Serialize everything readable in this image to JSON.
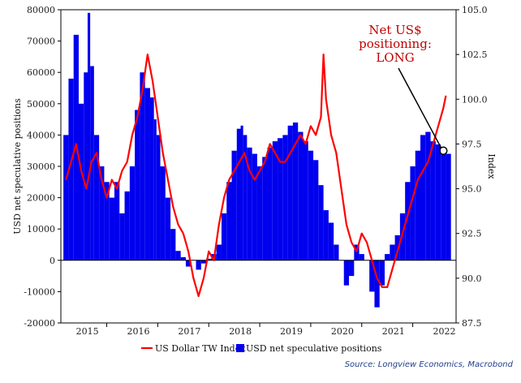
{
  "chart_data": {
    "type": "bar+line",
    "left_axis": {
      "label": "USD net speculative positions",
      "ylim": [
        -20000,
        80000
      ],
      "ticks": [
        "-20000",
        "-10000",
        "0",
        "10000",
        "20000",
        "30000",
        "40000",
        "50000",
        "60000",
        "70000",
        "80000"
      ],
      "tick_values": [
        -20000,
        -10000,
        0,
        10000,
        20000,
        30000,
        40000,
        50000,
        60000,
        70000,
        80000
      ]
    },
    "right_axis": {
      "label": "Index",
      "ylim": [
        87.5,
        105.0
      ],
      "ticks": [
        "87.5",
        "90.0",
        "92.5",
        "95.0",
        "97.5",
        "100.0",
        "102.5",
        "105.0"
      ],
      "tick_values": [
        87.5,
        90.0,
        92.5,
        95.0,
        97.5,
        100.0,
        102.5,
        105.0
      ]
    },
    "x_axis": {
      "labels": [
        "2015",
        "2016",
        "2017",
        "2018",
        "2019",
        "2020",
        "2021",
        "2022"
      ],
      "label_positions": [
        2015.0,
        2016.0,
        2017.0,
        2018.0,
        2019.0,
        2020.0,
        2021.0,
        2022.0
      ],
      "xlim": [
        2014.6,
        2022.35
      ]
    },
    "series": [
      {
        "name": "USD net speculative positions",
        "kind": "bar",
        "axis": "left",
        "color": "#0000ee",
        "x": [
          2014.7,
          2014.8,
          2014.9,
          2015.0,
          2015.1,
          2015.15,
          2015.2,
          2015.3,
          2015.4,
          2015.5,
          2015.6,
          2015.7,
          2015.8,
          2015.9,
          2016.0,
          2016.1,
          2016.2,
          2016.3,
          2016.4,
          2016.45,
          2016.5,
          2016.6,
          2016.7,
          2016.8,
          2016.9,
          2017.0,
          2017.1,
          2017.2,
          2017.3,
          2017.4,
          2017.5,
          2017.6,
          2017.7,
          2017.8,
          2017.9,
          2018.0,
          2018.1,
          2018.15,
          2018.2,
          2018.3,
          2018.4,
          2018.5,
          2018.6,
          2018.7,
          2018.8,
          2018.9,
          2019.0,
          2019.1,
          2019.2,
          2019.3,
          2019.4,
          2019.5,
          2019.6,
          2019.7,
          2019.8,
          2019.9,
          2020.0,
          2020.1,
          2020.2,
          2020.3,
          2020.4,
          2020.5,
          2020.6,
          2020.7,
          2020.8,
          2020.9,
          2021.0,
          2021.1,
          2021.2,
          2021.3,
          2021.4,
          2021.5,
          2021.6,
          2021.7,
          2021.8,
          2021.9,
          2022.0,
          2022.1,
          2022.2
        ],
        "values": [
          40000,
          58000,
          72000,
          50000,
          60000,
          79000,
          62000,
          40000,
          30000,
          25000,
          20000,
          25000,
          15000,
          22000,
          30000,
          48000,
          60000,
          55000,
          52000,
          45000,
          40000,
          30000,
          20000,
          10000,
          3000,
          1000,
          -2000,
          0,
          -3000,
          -1000,
          500,
          2000,
          5000,
          15000,
          25000,
          35000,
          42000,
          43000,
          40000,
          36000,
          34000,
          30000,
          33000,
          36000,
          38000,
          39000,
          40000,
          43000,
          44000,
          41000,
          38000,
          35000,
          32000,
          24000,
          16000,
          12000,
          5000,
          0,
          -8000,
          -5000,
          5000,
          2000,
          0,
          -10000,
          -15000,
          -8000,
          2000,
          5000,
          8000,
          15000,
          25000,
          30000,
          35000,
          40000,
          41000,
          38000,
          37000,
          34000,
          34000
        ]
      },
      {
        "name": "US Dollar TW Index",
        "kind": "line",
        "axis": "right",
        "color": "#ff0000",
        "x": [
          2014.7,
          2014.8,
          2014.9,
          2015.0,
          2015.1,
          2015.2,
          2015.3,
          2015.4,
          2015.5,
          2015.6,
          2015.7,
          2015.8,
          2015.9,
          2016.0,
          2016.1,
          2016.2,
          2016.3,
          2016.4,
          2016.5,
          2016.6,
          2016.7,
          2016.8,
          2016.9,
          2017.0,
          2017.1,
          2017.2,
          2017.3,
          2017.4,
          2017.5,
          2017.6,
          2017.7,
          2017.8,
          2017.9,
          2018.0,
          2018.1,
          2018.2,
          2018.3,
          2018.4,
          2018.5,
          2018.6,
          2018.7,
          2018.8,
          2018.9,
          2019.0,
          2019.1,
          2019.2,
          2019.3,
          2019.4,
          2019.5,
          2019.6,
          2019.7,
          2019.75,
          2019.8,
          2019.9,
          2020.0,
          2020.1,
          2020.2,
          2020.3,
          2020.4,
          2020.5,
          2020.6,
          2020.7,
          2020.8,
          2020.9,
          2021.0,
          2021.1,
          2021.2,
          2021.3,
          2021.4,
          2021.5,
          2021.6,
          2021.7,
          2021.8,
          2021.9,
          2022.0,
          2022.1,
          2022.15
        ],
        "values": [
          95.5,
          96.5,
          97.5,
          96.0,
          95.0,
          96.5,
          97.0,
          95.5,
          94.5,
          95.5,
          95.0,
          96.0,
          96.5,
          98.0,
          99.0,
          100.5,
          102.5,
          101.0,
          99.0,
          97.0,
          95.5,
          94.0,
          93.0,
          92.5,
          91.5,
          90.0,
          89.0,
          90.0,
          91.5,
          91.0,
          93.0,
          94.5,
          95.5,
          96.0,
          96.5,
          97.0,
          96.0,
          95.5,
          96.0,
          96.5,
          97.5,
          97.0,
          96.5,
          96.5,
          97.0,
          97.5,
          98.0,
          97.5,
          98.5,
          98.0,
          99.0,
          102.5,
          100.0,
          98.0,
          97.0,
          95.0,
          93.0,
          92.0,
          91.5,
          92.5,
          92.0,
          91.0,
          90.0,
          89.5,
          89.5,
          90.5,
          91.5,
          92.5,
          93.5,
          94.5,
          95.5,
          96.0,
          96.5,
          97.5,
          98.5,
          99.5,
          100.2
        ]
      }
    ],
    "legend": {
      "placement": "bottom-center"
    },
    "annotation": {
      "lines": [
        "Net US$",
        "positioning:",
        "LONG"
      ],
      "target_x": 2022.1,
      "target_y": 35000
    },
    "source": "Source: Longview Economics, Macrobond",
    "grid": false
  }
}
